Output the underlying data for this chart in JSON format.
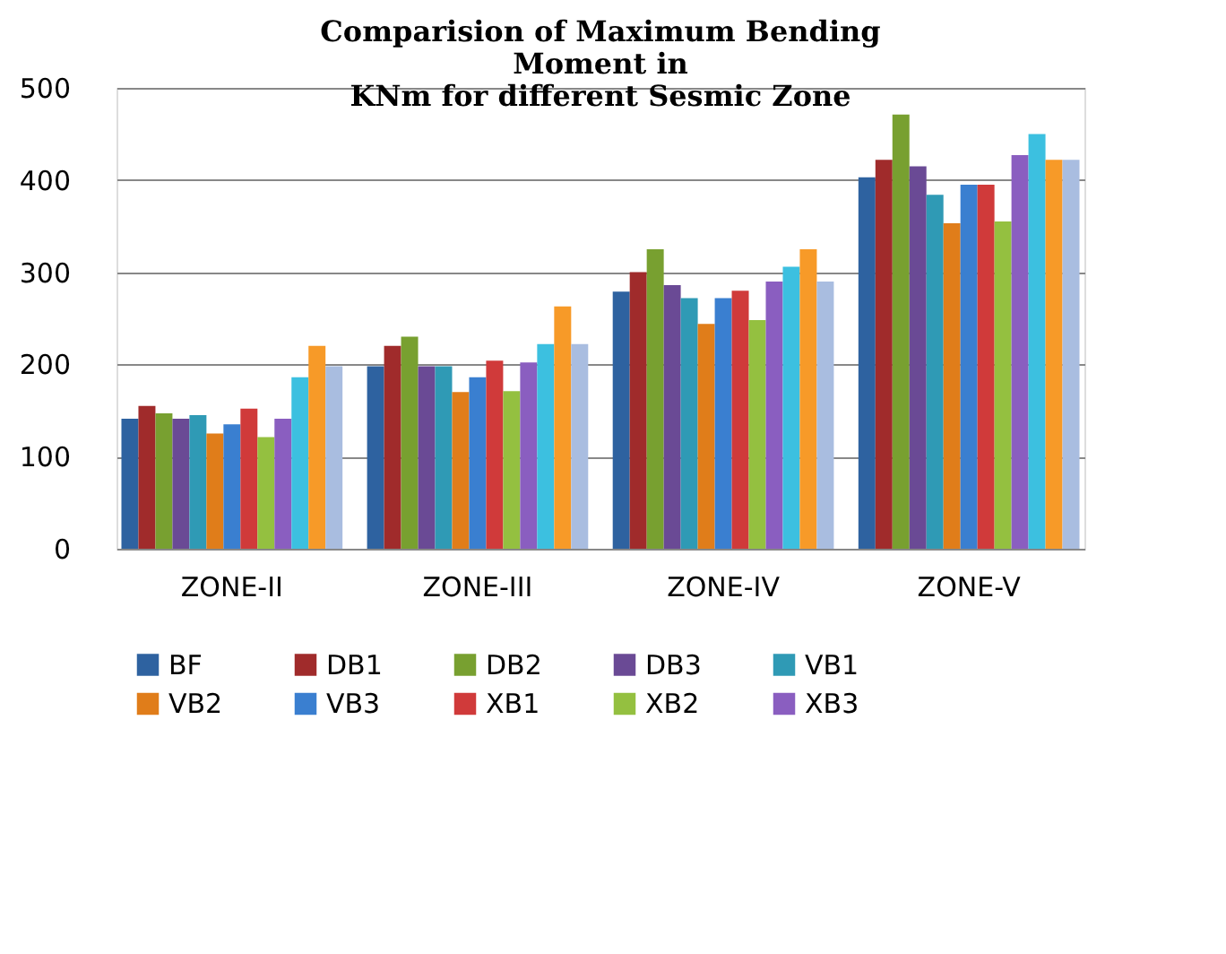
{
  "chart_data": {
    "type": "bar",
    "title": [
      "Comparision of Maximum Bending",
      "Moment in",
      "KNm for different Sesmic Zone"
    ],
    "categories": [
      "ZONE-II",
      "ZONE-III",
      "ZONE-IV",
      "ZONE-V"
    ],
    "series": [
      {
        "name": "BF",
        "color": "#2e62a0",
        "values": [
          141,
          198,
          279,
          403
        ]
      },
      {
        "name": "DB1",
        "color": "#a02b2b",
        "values": [
          155,
          220,
          300,
          422
        ]
      },
      {
        "name": "DB2",
        "color": "#78a030",
        "values": [
          147,
          230,
          325,
          471
        ]
      },
      {
        "name": "DB3",
        "color": "#6a4a95",
        "values": [
          141,
          198,
          286,
          415
        ]
      },
      {
        "name": "VB1",
        "color": "#2f9ab5",
        "values": [
          145,
          198,
          272,
          384
        ]
      },
      {
        "name": "VB2",
        "color": "#e07d1a",
        "values": [
          125,
          170,
          244,
          353
        ]
      },
      {
        "name": "VB3",
        "color": "#3a7fd0",
        "values": [
          135,
          186,
          272,
          395
        ]
      },
      {
        "name": "XB1",
        "color": "#d03a3a",
        "values": [
          152,
          204,
          280,
          395
        ]
      },
      {
        "name": "XB2",
        "color": "#94c040",
        "values": [
          121,
          171,
          248,
          355
        ]
      },
      {
        "name": "XB3",
        "color": "#8a5ec0",
        "values": [
          141,
          202,
          290,
          427
        ]
      },
      {
        "color": "#3cc0e0",
        "values": [
          186,
          222,
          306,
          450
        ]
      },
      {
        "color": "#f79a28",
        "values": [
          220,
          263,
          325,
          422
        ]
      },
      {
        "color": "#a9bde0",
        "values": [
          198,
          222,
          290,
          422
        ]
      }
    ],
    "ylim": [
      0,
      500
    ],
    "yticks": [
      0,
      100,
      200,
      300,
      400,
      500
    ],
    "grid": "y",
    "legend": "bottom"
  }
}
